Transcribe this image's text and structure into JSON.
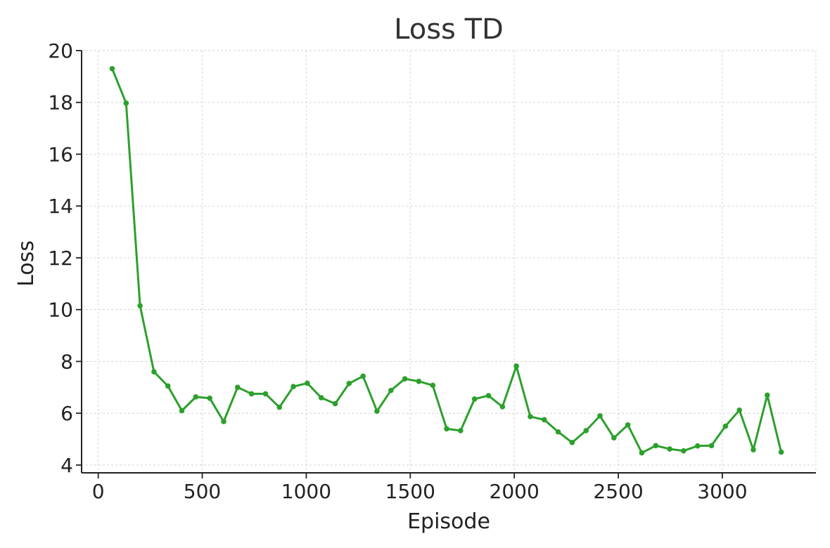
{
  "chart_data": {
    "type": "line",
    "title": "Loss TD",
    "xlabel": "Episode",
    "ylabel": "Loss",
    "xlim": [
      -80,
      3450
    ],
    "ylim": [
      3.7,
      20
    ],
    "xticks": [
      0,
      500,
      1000,
      1500,
      2000,
      2500,
      3000
    ],
    "yticks": [
      4,
      6,
      8,
      10,
      12,
      14,
      16,
      18,
      20
    ],
    "grid": true,
    "colors": {
      "line": "#2ca02c"
    },
    "series": [
      {
        "x": [
          67,
          134,
          201,
          268,
          335,
          402,
          469,
          536,
          603,
          670,
          737,
          804,
          871,
          938,
          1005,
          1072,
          1139,
          1206,
          1273,
          1340,
          1407,
          1474,
          1541,
          1608,
          1675,
          1742,
          1809,
          1876,
          1943,
          2010,
          2077,
          2144,
          2211,
          2278,
          2345,
          2412,
          2479,
          2546,
          2613,
          2680,
          2747,
          2814,
          2881,
          2948,
          3015,
          3082,
          3149,
          3216,
          3283
        ],
        "y": [
          19.3,
          17.97,
          10.15,
          7.6,
          7.05,
          6.1,
          6.63,
          6.58,
          5.68,
          7.0,
          6.75,
          6.75,
          6.23,
          7.03,
          7.16,
          6.6,
          6.37,
          7.15,
          7.43,
          6.08,
          6.88,
          7.33,
          7.23,
          7.08,
          5.4,
          5.33,
          6.55,
          6.68,
          6.25,
          7.82,
          5.87,
          5.75,
          5.28,
          4.87,
          5.33,
          5.9,
          5.05,
          5.55,
          4.47,
          4.75,
          4.62,
          4.55,
          4.74,
          4.75,
          5.5,
          6.12,
          4.59,
          6.7,
          4.5
        ]
      }
    ]
  }
}
